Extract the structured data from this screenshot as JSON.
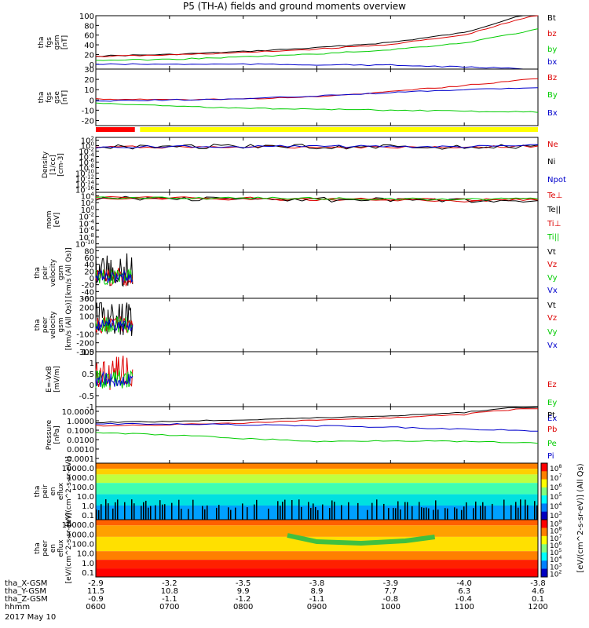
{
  "title": "P5 (TH-A) fields and ground moments overview",
  "date_label": "2017 May 10",
  "colors": {
    "black": "#000000",
    "red": "#dd0000",
    "green": "#00cc00",
    "blue": "#0000cc",
    "yellow": "#ffff00"
  },
  "time_axis": {
    "rows": [
      {
        "label": "tha_X-GSM",
        "values": [
          "-2.9",
          "-3.2",
          "-3.5",
          "-3.8",
          "-3.9",
          "-4.0",
          "-3.8"
        ]
      },
      {
        "label": "tha_Y-GSM",
        "values": [
          "11.5",
          "10.8",
          "9.9",
          "8.9",
          "7.7",
          "6.3",
          "4.6"
        ]
      },
      {
        "label": "tha_Z-GSM",
        "values": [
          "-0.9",
          "-1.1",
          "-1.2",
          "-1.1",
          "-0.8",
          "-0.4",
          "0.1"
        ]
      },
      {
        "label": "hhmm",
        "values": [
          "0600",
          "0700",
          "0800",
          "0900",
          "1000",
          "1100",
          "1200"
        ]
      }
    ]
  },
  "colorbar": {
    "label": "[eV/(cm^2-s-sr-eV)] (All Qs)",
    "ticks_ion": [
      "10^8",
      "10^7",
      "10^6",
      "10^5",
      "10^4",
      "10^3"
    ],
    "ticks_electron": [
      "10^9",
      "10^8",
      "10^7",
      "10^6",
      "10^5",
      "10^4",
      "10^3",
      "10^2"
    ]
  },
  "chart_data": [
    {
      "type": "line",
      "id": "fgs_gsm",
      "ylabel": [
        "tha",
        "fgs",
        "gsm",
        "[nT]"
      ],
      "yticks": [
        0,
        20,
        40,
        60,
        80,
        100
      ],
      "ylim": [
        -10,
        100
      ],
      "ylog": false,
      "x": [
        6,
        7,
        8,
        9,
        10,
        11,
        12
      ],
      "series": [
        {
          "name": "Bt",
          "color": "black",
          "values": [
            17,
            20,
            26,
            34,
            45,
            65,
            112
          ]
        },
        {
          "name": "bz",
          "color": "red",
          "values": [
            16,
            19,
            24,
            31,
            41,
            60,
            103
          ]
        },
        {
          "name": "by",
          "color": "green",
          "values": [
            8,
            10,
            15,
            21,
            30,
            44,
            72
          ]
        },
        {
          "name": "bx",
          "color": "blue",
          "values": [
            0,
            0,
            0,
            -1,
            -2,
            -6,
            -10
          ]
        }
      ]
    },
    {
      "type": "line",
      "id": "fgs_gse",
      "ylabel": [
        "tha",
        "fgs",
        "gse",
        "[nT]"
      ],
      "yticks": [
        -20,
        -10,
        0,
        10,
        20,
        30
      ],
      "ylim": [
        -25,
        30
      ],
      "ylog": false,
      "x": [
        6,
        7,
        8,
        9,
        10,
        11,
        12
      ],
      "series": [
        {
          "name": "Bz",
          "color": "red",
          "values": [
            1,
            0,
            1,
            3,
            8,
            14,
            21
          ]
        },
        {
          "name": "By",
          "color": "green",
          "values": [
            -3,
            -6,
            -8,
            -9,
            -10,
            -11,
            -12
          ]
        },
        {
          "name": "Bx",
          "color": "blue",
          "values": [
            -1,
            0,
            1,
            4,
            7,
            10,
            12
          ]
        }
      ]
    },
    {
      "type": "line",
      "id": "density",
      "ylabel": [
        "Density",
        "[1/cc]",
        "[cm-3]"
      ],
      "yticks": [
        "10^2",
        "10^0",
        "10^-2",
        "10^-4",
        "10^-6",
        "10^-8",
        "10^-10",
        "10^-12",
        "10^-14",
        "10^-16"
      ],
      "ylim": [
        -17,
        3
      ],
      "ylog": true,
      "x": [
        6,
        7,
        8,
        9,
        10,
        11,
        12
      ],
      "series": [
        {
          "name": "Ne",
          "color": "red",
          "values": [
            0.3,
            0.3,
            0.3,
            0.3,
            0.3,
            0.3,
            0.5
          ]
        },
        {
          "name": "Ni",
          "color": "black",
          "values": [
            0.3,
            0.5,
            0.5,
            0.4,
            0.3,
            0.3,
            0.5
          ]
        },
        {
          "name": "Npot",
          "color": "blue",
          "values": [
            0.3,
            0.4,
            0.4,
            0.6,
            0.5,
            0.4,
            1.0
          ]
        }
      ]
    },
    {
      "type": "line",
      "id": "temperature",
      "ylabel": [
        "mom",
        "[eV]"
      ],
      "yticks": [
        "10^4",
        "10^2",
        "10^0",
        "10^-2",
        "10^-4",
        "10^-6",
        "10^-8",
        "10^-10"
      ],
      "ylim": [
        -11,
        5
      ],
      "ylog": true,
      "x": [
        6,
        7,
        8,
        9,
        10,
        11,
        12
      ],
      "series": [
        {
          "name": "Te⊥",
          "color": "red",
          "values": [
            2000,
            1500,
            1000,
            800,
            500,
            300,
            800
          ]
        },
        {
          "name": "Te||",
          "color": "black",
          "values": [
            2000,
            1500,
            1000,
            800,
            500,
            300,
            800
          ]
        },
        {
          "name": "Ti⊥",
          "color": "red",
          "values": [
            3000,
            2500,
            2000,
            1500,
            1200,
            800,
            1200
          ]
        },
        {
          "name": "Ti||",
          "color": "green",
          "values": [
            3000,
            2500,
            2000,
            1500,
            1200,
            800,
            1200
          ]
        }
      ]
    },
    {
      "type": "line",
      "id": "peir_velocity",
      "ylabel": [
        "tha",
        "peir",
        "velocity",
        "gsm",
        "[km/s (All Qs)]"
      ],
      "yticks": [
        -60,
        -40,
        -20,
        0,
        20,
        40,
        60,
        80
      ],
      "ylim": [
        -60,
        90
      ],
      "ylog": false,
      "x": [
        6.0,
        6.5
      ],
      "series": [
        {
          "name": "Vt",
          "color": "black"
        },
        {
          "name": "Vz",
          "color": "red"
        },
        {
          "name": "Vy",
          "color": "green"
        },
        {
          "name": "Vx",
          "color": "blue"
        }
      ]
    },
    {
      "type": "line",
      "id": "peer_velocity",
      "ylabel": [
        "tha",
        "peer",
        "velocity",
        "gsm",
        "[km/s (All Qs)]"
      ],
      "yticks": [
        -300,
        -200,
        -100,
        0,
        100,
        200,
        300
      ],
      "ylim": [
        -300,
        300
      ],
      "ylog": false,
      "x": [
        6.0,
        6.5
      ],
      "series": [
        {
          "name": "Vt",
          "color": "black"
        },
        {
          "name": "Vz",
          "color": "red"
        },
        {
          "name": "Vy",
          "color": "green"
        },
        {
          "name": "Vx",
          "color": "blue"
        }
      ]
    },
    {
      "type": "line",
      "id": "e_field",
      "ylabel": [
        "E=-VxB",
        "[mV/m]"
      ],
      "yticks": [
        -1.0,
        -0.5,
        0.0,
        0.5,
        1.0,
        1.5
      ],
      "ylim": [
        -1.0,
        1.5
      ],
      "ylog": false,
      "x": [
        6.0,
        6.5
      ],
      "series": [
        {
          "name": "Ez",
          "color": "red"
        },
        {
          "name": "Ey",
          "color": "green"
        },
        {
          "name": "Ex",
          "color": "blue"
        }
      ]
    },
    {
      "type": "line",
      "id": "pressure",
      "ylabel": [
        "Pressure",
        "[nPa]"
      ],
      "yticks": [
        "10.0000",
        "1.0000",
        "0.1000",
        "0.0100",
        "0.0010",
        "0.0001"
      ],
      "ylim": [
        -4,
        1
      ],
      "ylog": true,
      "x": [
        6,
        7,
        8,
        9,
        10,
        11,
        12
      ],
      "series": [
        {
          "name": "Pt",
          "color": "black",
          "values": [
            0.4,
            0.5,
            0.7,
            1.0,
            1.5,
            3.0,
            10
          ]
        },
        {
          "name": "Pb",
          "color": "red",
          "values": [
            0.2,
            0.25,
            0.35,
            0.6,
            1.0,
            2.0,
            7
          ]
        },
        {
          "name": "Pe",
          "color": "green",
          "values": [
            0.05,
            0.03,
            0.015,
            0.008,
            0.01,
            0.008,
            0.006
          ]
        },
        {
          "name": "Pi",
          "color": "blue",
          "values": [
            0.3,
            0.3,
            0.25,
            0.2,
            0.15,
            0.1,
            0.07
          ]
        }
      ]
    },
    {
      "type": "heatmap",
      "id": "peir_eflux",
      "ylabel": [
        "tha",
        "peir",
        "en",
        "eflux",
        "[eV/(cm^2-s-sr-eV)]"
      ],
      "yticks": [
        "10000.0",
        "1000.0",
        "100.0",
        "10.0",
        "1.0",
        "0.1"
      ],
      "ylog": true
    },
    {
      "type": "heatmap",
      "id": "peer_eflux",
      "ylabel": [
        "tha",
        "peer",
        "en",
        "eflux",
        "[eV/(cm^2-s-sr-eV)]"
      ],
      "yticks": [
        "10000.0",
        "1000.0",
        "100.0",
        "10.0",
        "1.0",
        "0.1"
      ],
      "ylog": true
    }
  ]
}
